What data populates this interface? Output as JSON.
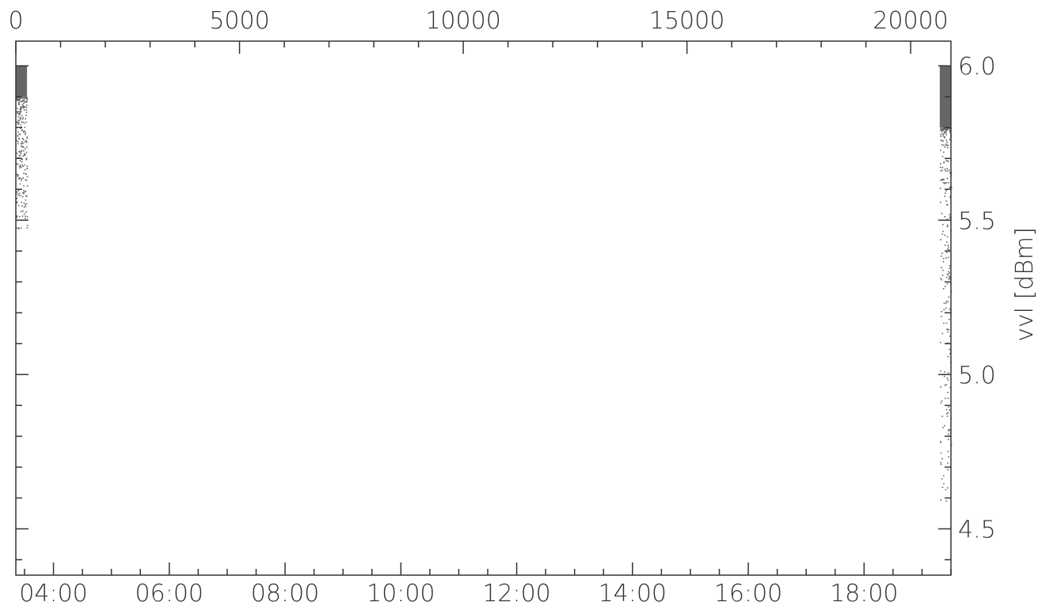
{
  "chart_data": {
    "type": "scatter",
    "title": "",
    "ylabel": "vvl [dBm]",
    "xlabel": "",
    "x_top": {
      "ticks": [
        0,
        5000,
        10000,
        15000,
        20000
      ],
      "tick_labels": [
        "0",
        "5000",
        "10000",
        "15000",
        "20000"
      ],
      "range": [
        0,
        20900
      ]
    },
    "x_bottom": {
      "tick_labels": [
        "04:00",
        "06:00",
        "08:00",
        "10:00",
        "12:00",
        "14:00",
        "16:00",
        "18:00"
      ],
      "tick_hours": [
        4,
        6,
        8,
        10,
        12,
        14,
        16,
        18
      ],
      "range_hours": [
        3.35,
        19.5
      ]
    },
    "y": {
      "ticks": [
        4.5,
        5.0,
        5.5,
        6.0
      ],
      "tick_labels": [
        "4.5",
        "5.0",
        "5.5",
        "6.0"
      ],
      "minor_step": 0.1,
      "range": [
        4.35,
        6.08
      ],
      "side": "right"
    },
    "grid": false,
    "legend": "none",
    "colors": {
      "points": "#666666",
      "axis": "#333333"
    },
    "clusters": [
      {
        "name_hidden": "",
        "x_range": [
          0,
          250
        ],
        "dense_y_range": [
          5.9,
          6.0
        ],
        "sparse_y_min": 5.47
      },
      {
        "name_hidden": "",
        "x_range": [
          20650,
          20900
        ],
        "dense_y_range": [
          5.8,
          6.0
        ],
        "sparse_y_min": 4.58
      }
    ]
  }
}
